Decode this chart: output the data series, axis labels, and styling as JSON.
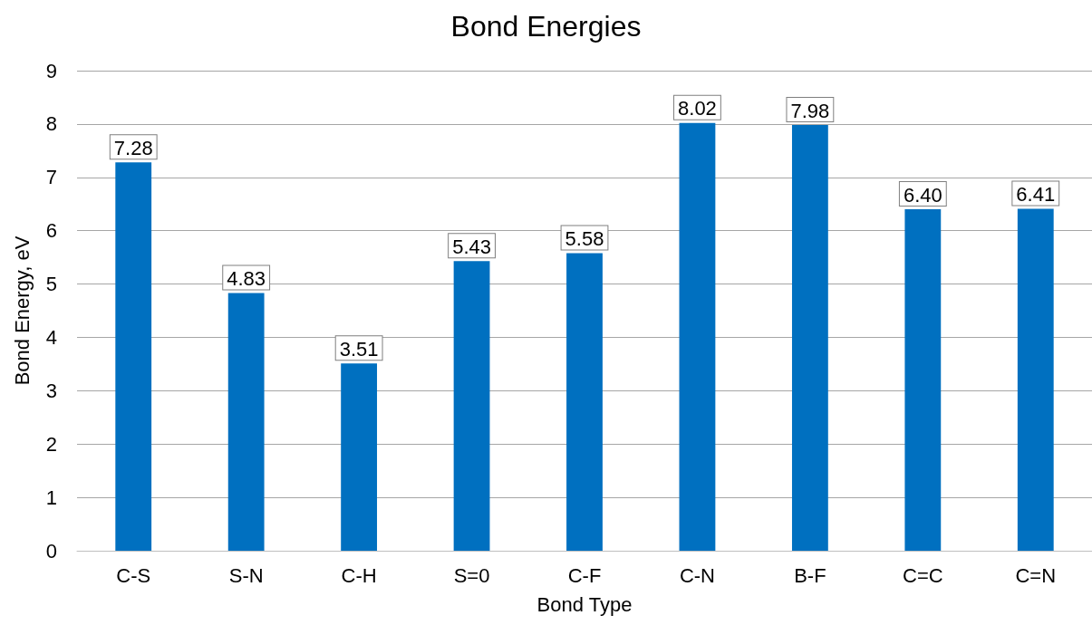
{
  "chart_data": {
    "type": "bar",
    "title": "Bond Energies",
    "xlabel": "Bond Type",
    "ylabel": "Bond Energy, eV",
    "categories": [
      "C-S",
      "S-N",
      "C-H",
      "S=0",
      "C-F",
      "C-N",
      "B-F",
      "C=C",
      "C=N"
    ],
    "values": [
      7.28,
      4.83,
      3.51,
      5.43,
      5.58,
      8.02,
      7.98,
      6.4,
      6.41
    ],
    "value_labels": [
      "7.28",
      "4.83",
      "3.51",
      "5.43",
      "5.58",
      "8.02",
      "7.98",
      "6.40",
      "6.41"
    ],
    "color": "#0070c0",
    "ylim": [
      0,
      9
    ],
    "yticks": [
      0,
      1,
      2,
      3,
      4,
      5,
      6,
      7,
      8,
      9
    ],
    "grid": "y"
  }
}
